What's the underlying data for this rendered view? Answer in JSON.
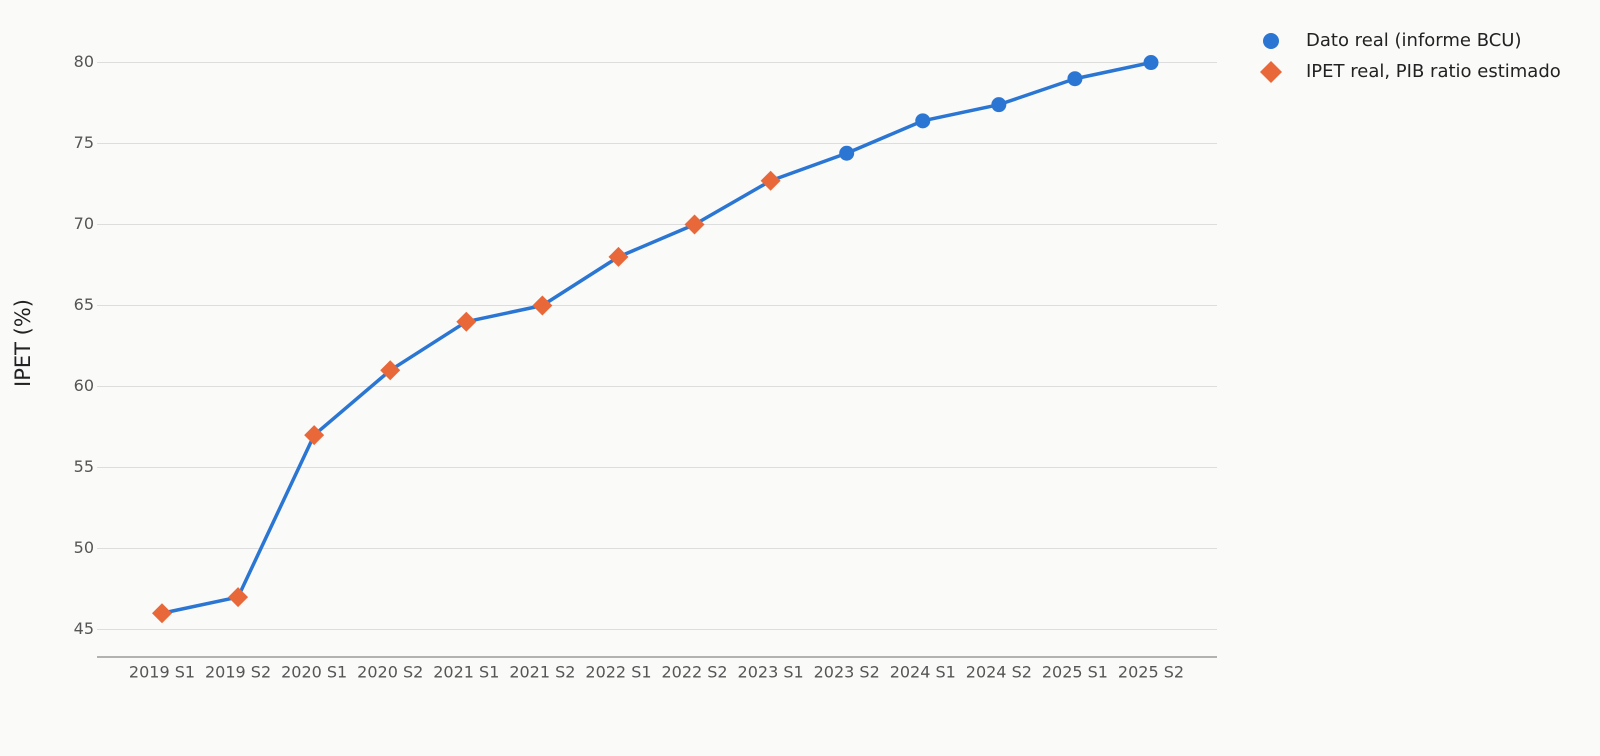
{
  "chart_data": {
    "type": "line",
    "y_label": "IPET (%)",
    "categories": [
      "2019 S1",
      "2019 S2",
      "2020 S1",
      "2020 S2",
      "2021 S1",
      "2021 S2",
      "2022 S1",
      "2022 S2",
      "2023 S1",
      "2023 S2",
      "2024 S1",
      "2024 S2",
      "2025 S1",
      "2025 S2"
    ],
    "series": [
      {
        "name": "Dato real (informe BCU)",
        "color": "#2a76d2",
        "marker": "circle",
        "values": [
          null,
          null,
          null,
          null,
          null,
          null,
          null,
          null,
          null,
          74.4,
          76.4,
          77.4,
          79.0,
          80.0
        ]
      },
      {
        "name": "IPET real, PIB ratio estimado",
        "color": "#e8683a",
        "marker": "diamond",
        "values": [
          46,
          47,
          57,
          61,
          64,
          65,
          68,
          70,
          72.7,
          null,
          null,
          null,
          null,
          null
        ]
      }
    ],
    "line_color": "#2a76d2",
    "ylim": [
      43.3,
      81.7
    ],
    "yticks": [
      45,
      50,
      55,
      60,
      65,
      70,
      75,
      80
    ],
    "grid": true,
    "legend_position": "top-right"
  }
}
